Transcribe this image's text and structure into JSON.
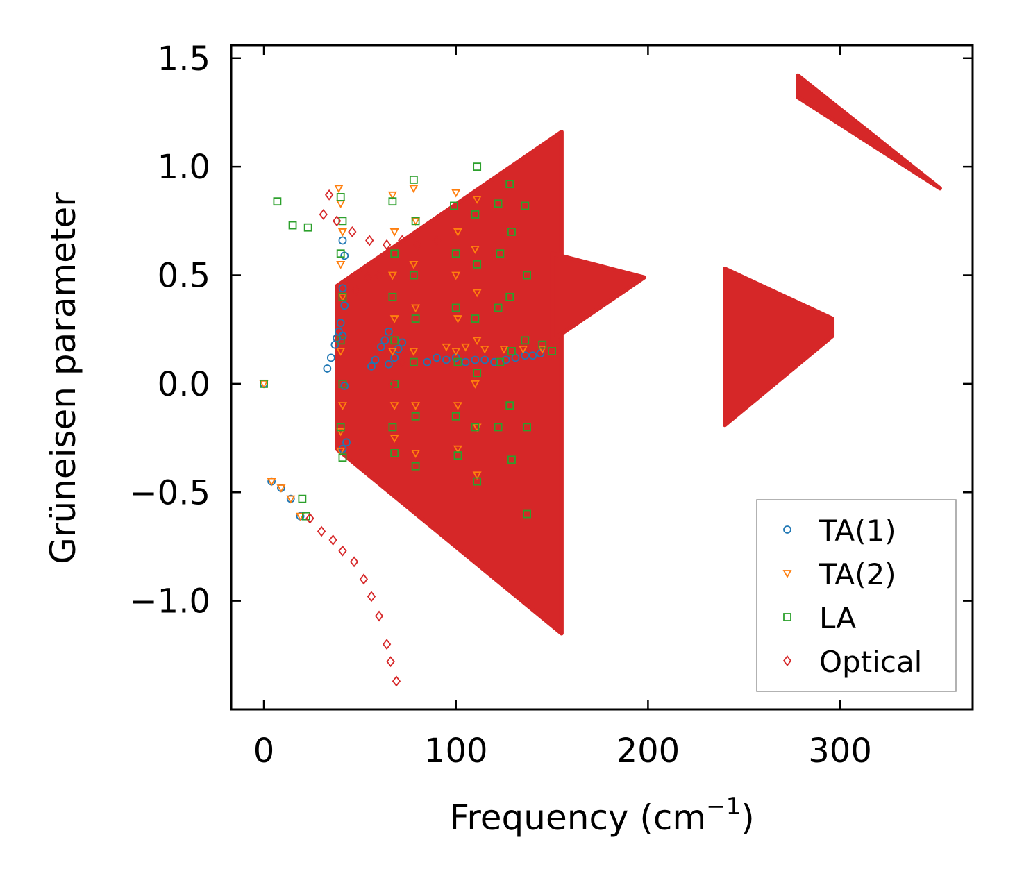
{
  "chart_data": {
    "type": "scatter",
    "title": "",
    "xlabel": "Frequency (cm",
    "xlabel_sup": "−1",
    "xlabel_close": ")",
    "ylabel": "Grüneisen parameter",
    "xlim": [
      -17,
      369
    ],
    "ylim": [
      -1.5,
      1.56
    ],
    "xticks": [
      0,
      100,
      200,
      300
    ],
    "xtick_labels": [
      "0",
      "100",
      "200",
      "300"
    ],
    "yticks": [
      -1.0,
      -0.5,
      0.0,
      0.5,
      1.0,
      1.5
    ],
    "ytick_labels": [
      "−1.0",
      "−0.5",
      "0.0",
      "0.5",
      "1.0",
      "1.5"
    ],
    "grid": false,
    "legend_position": "bottom-right",
    "legend": [
      {
        "label": "TA(1)",
        "marker": "circle",
        "color": "#1f77b4"
      },
      {
        "label": "TA(2)",
        "marker": "triangle-down",
        "color": "#ff7f0e"
      },
      {
        "label": "LA",
        "marker": "square",
        "color": "#2ca02c"
      },
      {
        "label": "Optical",
        "marker": "diamond",
        "color": "#d62728"
      }
    ],
    "series": [
      {
        "name": "TA(1)",
        "marker": "circle",
        "color": "#1f77b4",
        "points": [
          [
            0,
            0
          ],
          [
            4,
            -0.45
          ],
          [
            9,
            -0.48
          ],
          [
            14,
            -0.53
          ],
          [
            19,
            -0.61
          ],
          [
            33,
            0.07
          ],
          [
            35,
            0.12
          ],
          [
            37,
            0.18
          ],
          [
            38,
            0.21
          ],
          [
            39,
            0.24
          ],
          [
            40,
            0.28
          ],
          [
            41,
            0.22
          ],
          [
            41,
            0.44
          ],
          [
            42,
            0.59
          ],
          [
            41,
            0.66
          ],
          [
            42,
            0.36
          ],
          [
            42,
            -0.01
          ],
          [
            43,
            -0.27
          ],
          [
            41,
            -0.3
          ],
          [
            56,
            0.08
          ],
          [
            58,
            0.11
          ],
          [
            61,
            0.17
          ],
          [
            63,
            0.2
          ],
          [
            65,
            0.24
          ],
          [
            65,
            0.09
          ],
          [
            68,
            0.12
          ],
          [
            70,
            0.16
          ],
          [
            72,
            0.19
          ],
          [
            85,
            0.1
          ],
          [
            90,
            0.12
          ],
          [
            95,
            0.11
          ],
          [
            100,
            0.12
          ],
          [
            105,
            0.1
          ],
          [
            110,
            0.11
          ],
          [
            115,
            0.11
          ],
          [
            120,
            0.1
          ],
          [
            126,
            0.11
          ],
          [
            131,
            0.12
          ],
          [
            136,
            0.13
          ],
          [
            140,
            0.13
          ],
          [
            144,
            0.14
          ]
        ]
      },
      {
        "name": "TA(2)",
        "marker": "triangle-down",
        "color": "#ff7f0e",
        "points": [
          [
            0,
            0
          ],
          [
            4,
            -0.45
          ],
          [
            9,
            -0.48
          ],
          [
            14,
            -0.53
          ],
          [
            19,
            -0.61
          ],
          [
            39,
            0.9
          ],
          [
            40,
            0.83
          ],
          [
            41,
            0.7
          ],
          [
            40,
            0.55
          ],
          [
            41,
            0.4
          ],
          [
            40,
            0.15
          ],
          [
            41,
            -0.1
          ],
          [
            40,
            -0.22
          ],
          [
            40,
            -0.31
          ],
          [
            67,
            0.87
          ],
          [
            68,
            0.7
          ],
          [
            67,
            0.5
          ],
          [
            68,
            0.3
          ],
          [
            67,
            0.15
          ],
          [
            68,
            -0.1
          ],
          [
            68,
            -0.25
          ],
          [
            78,
            0.9
          ],
          [
            79,
            0.75
          ],
          [
            78,
            0.55
          ],
          [
            79,
            0.35
          ],
          [
            78,
            0.15
          ],
          [
            79,
            -0.1
          ],
          [
            79,
            -0.32
          ],
          [
            100,
            0.88
          ],
          [
            101,
            0.7
          ],
          [
            100,
            0.5
          ],
          [
            101,
            0.3
          ],
          [
            100,
            0.15
          ],
          [
            101,
            -0.1
          ],
          [
            101,
            -0.3
          ],
          [
            111,
            0.85
          ],
          [
            110,
            0.62
          ],
          [
            111,
            0.42
          ],
          [
            111,
            0.2
          ],
          [
            110,
            0.0
          ],
          [
            111,
            -0.2
          ],
          [
            111,
            -0.42
          ],
          [
            95,
            0.17
          ],
          [
            105,
            0.17
          ],
          [
            115,
            0.16
          ],
          [
            125,
            0.16
          ],
          [
            135,
            0.16
          ],
          [
            145,
            0.16
          ]
        ]
      },
      {
        "name": "LA",
        "marker": "square",
        "color": "#2ca02c",
        "points": [
          [
            0,
            0
          ],
          [
            7,
            0.84
          ],
          [
            15,
            0.73
          ],
          [
            23,
            0.72
          ],
          [
            22,
            -0.61
          ],
          [
            20,
            -0.53
          ],
          [
            40,
            0.86
          ],
          [
            41,
            0.75
          ],
          [
            40,
            0.6
          ],
          [
            41,
            0.4
          ],
          [
            40,
            0.2
          ],
          [
            41,
            0.0
          ],
          [
            40,
            -0.2
          ],
          [
            41,
            -0.34
          ],
          [
            67,
            0.84
          ],
          [
            68,
            0.6
          ],
          [
            67,
            0.4
          ],
          [
            68,
            0.2
          ],
          [
            68,
            0.0
          ],
          [
            67,
            -0.2
          ],
          [
            68,
            -0.32
          ],
          [
            78,
            0.94
          ],
          [
            79,
            0.75
          ],
          [
            78,
            0.5
          ],
          [
            79,
            0.3
          ],
          [
            78,
            0.1
          ],
          [
            79,
            -0.15
          ],
          [
            79,
            -0.38
          ],
          [
            99,
            0.82
          ],
          [
            100,
            0.6
          ],
          [
            100,
            0.35
          ],
          [
            101,
            0.1
          ],
          [
            100,
            -0.15
          ],
          [
            101,
            -0.33
          ],
          [
            111,
            1.0
          ],
          [
            110,
            0.78
          ],
          [
            111,
            0.55
          ],
          [
            110,
            0.3
          ],
          [
            111,
            0.05
          ],
          [
            110,
            -0.2
          ],
          [
            111,
            -0.45
          ],
          [
            122,
            0.83
          ],
          [
            123,
            0.6
          ],
          [
            122,
            0.35
          ],
          [
            123,
            0.1
          ],
          [
            122,
            -0.2
          ],
          [
            128,
            0.92
          ],
          [
            129,
            0.7
          ],
          [
            128,
            0.4
          ],
          [
            129,
            0.15
          ],
          [
            128,
            -0.1
          ],
          [
            129,
            -0.35
          ],
          [
            136,
            0.82
          ],
          [
            137,
            0.5
          ],
          [
            136,
            0.2
          ],
          [
            137,
            -0.2
          ],
          [
            137,
            -0.6
          ],
          [
            145,
            0.18
          ],
          [
            150,
            0.15
          ]
        ]
      },
      {
        "name": "Optical",
        "marker": "diamond",
        "color": "#d62728",
        "points": [
          [
            24,
            -0.62
          ],
          [
            30,
            -0.68
          ],
          [
            36,
            -0.72
          ],
          [
            41,
            -0.77
          ],
          [
            47,
            -0.82
          ],
          [
            52,
            -0.9
          ],
          [
            56,
            -0.98
          ],
          [
            60,
            -1.07
          ],
          [
            64,
            -1.2
          ],
          [
            66,
            -1.28
          ],
          [
            69,
            -1.37
          ],
          [
            34,
            0.87
          ],
          [
            31,
            0.78
          ],
          [
            38,
            0.75
          ],
          [
            46,
            0.7
          ],
          [
            55,
            0.66
          ],
          [
            64,
            0.64
          ],
          [
            72,
            0.66
          ],
          [
            80,
            0.64
          ],
          [
            90,
            0.66
          ],
          [
            54,
            0.49
          ],
          [
            48,
            0.43
          ],
          [
            60,
            0.5
          ],
          [
            67,
            0.0
          ],
          [
            72,
            0.1
          ]
        ]
      }
    ],
    "optical_clusters": [
      {
        "comment": "dense optical bands",
        "x": [
          38,
          155
        ],
        "y_top": [
          0.45,
          1.16
        ],
        "y_bottom": [
          -0.3,
          -1.15
        ]
      },
      {
        "comment": "optical wing",
        "x": [
          150,
          198
        ],
        "y_top": [
          0.6,
          0.49
        ],
        "y_bottom": [
          0.2,
          0.49
        ]
      },
      {
        "comment": "mid optical cluster",
        "x": [
          240,
          296
        ],
        "y_top": [
          0.53,
          0.3
        ],
        "y_bottom": [
          -0.19,
          0.22
        ]
      },
      {
        "comment": "high optical branch",
        "x": [
          278,
          352
        ],
        "y_top": [
          1.42,
          0.9
        ],
        "y_bottom": [
          1.32,
          0.9
        ]
      }
    ]
  }
}
